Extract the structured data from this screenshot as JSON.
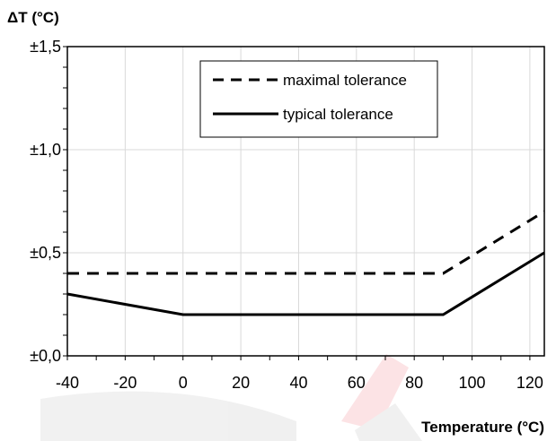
{
  "chart_data": {
    "type": "line",
    "ylabel": "ΔT (°C)",
    "xlabel": "Temperature (°C)",
    "xlim": [
      -40,
      125
    ],
    "ylim": [
      0,
      1.5
    ],
    "x_ticks": [
      -40,
      -20,
      0,
      20,
      40,
      60,
      80,
      100,
      120
    ],
    "y_ticks": [
      0,
      0.5,
      1.0,
      1.5
    ],
    "x_tick_labels": [
      "-40",
      "-20",
      "0",
      "20",
      "40",
      "60",
      "80",
      "100",
      "120"
    ],
    "y_tick_labels": [
      "±0,0",
      "±0,5",
      "±1,0",
      "±1,5"
    ],
    "grid": true,
    "legend_position": "top-center",
    "series": [
      {
        "name": "maximal tolerance",
        "style": "dashed",
        "color": "#000000",
        "points": [
          [
            -40,
            0.4
          ],
          [
            90,
            0.4
          ],
          [
            125,
            0.7
          ]
        ]
      },
      {
        "name": "typical tolerance",
        "style": "solid",
        "color": "#000000",
        "points": [
          [
            -40,
            0.3
          ],
          [
            0,
            0.2
          ],
          [
            90,
            0.2
          ],
          [
            125,
            0.5
          ]
        ]
      }
    ]
  }
}
